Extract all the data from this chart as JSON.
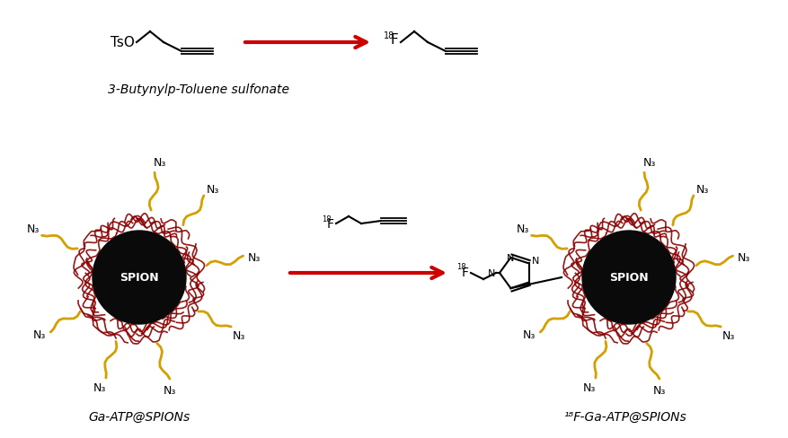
{
  "bg_color": "#ffffff",
  "bond_color": "#000000",
  "arrow_color": "#cc0000",
  "spion_core_color": "#0a0a0a",
  "spion_ring_color": "#8b0000",
  "ligand_color": "#d4a000",
  "spion_text_color": "#ffffff",
  "n3_label": "N₃",
  "spion_label": "SPION",
  "bottom_label_left": "Ga-ATP@SPIONs",
  "bottom_label_right": "¹⁸F-Ga-ATP@SPIONs",
  "top_label": "3-Butynylp-Toluene sulfonate",
  "top_tso_label": "TsO",
  "f18_super": "18",
  "f18_main": "F"
}
